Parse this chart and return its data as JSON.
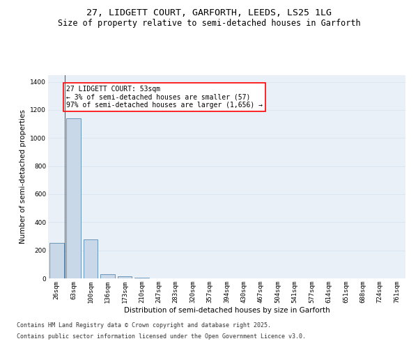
{
  "title_line1": "27, LIDGETT COURT, GARFORTH, LEEDS, LS25 1LG",
  "title_line2": "Size of property relative to semi-detached houses in Garforth",
  "xlabel": "Distribution of semi-detached houses by size in Garforth",
  "ylabel": "Number of semi-detached properties",
  "categories": [
    "26sqm",
    "63sqm",
    "100sqm",
    "136sqm",
    "173sqm",
    "210sqm",
    "247sqm",
    "283sqm",
    "320sqm",
    "357sqm",
    "394sqm",
    "430sqm",
    "467sqm",
    "504sqm",
    "541sqm",
    "577sqm",
    "614sqm",
    "651sqm",
    "688sqm",
    "724sqm",
    "761sqm"
  ],
  "values": [
    255,
    1140,
    280,
    30,
    15,
    7,
    0,
    0,
    0,
    0,
    0,
    0,
    0,
    0,
    0,
    0,
    0,
    0,
    0,
    0,
    0
  ],
  "bar_color": "#c8d8e8",
  "bar_edge_color": "#5a8ab0",
  "annotation_text": "27 LIDGETT COURT: 53sqm\n← 3% of semi-detached houses are smaller (57)\n97% of semi-detached houses are larger (1,656) →",
  "annotation_box_color": "white",
  "annotation_box_edge_color": "red",
  "ylim": [
    0,
    1450
  ],
  "yticks": [
    0,
    200,
    400,
    600,
    800,
    1000,
    1200,
    1400
  ],
  "grid_color": "#dce6f0",
  "bg_color": "#eaf0f8",
  "footer_line1": "Contains HM Land Registry data © Crown copyright and database right 2025.",
  "footer_line2": "Contains public sector information licensed under the Open Government Licence v3.0.",
  "title_fontsize": 9.5,
  "subtitle_fontsize": 8.5,
  "axis_label_fontsize": 7.5,
  "tick_fontsize": 6.5,
  "annotation_fontsize": 7,
  "footer_fontsize": 6
}
